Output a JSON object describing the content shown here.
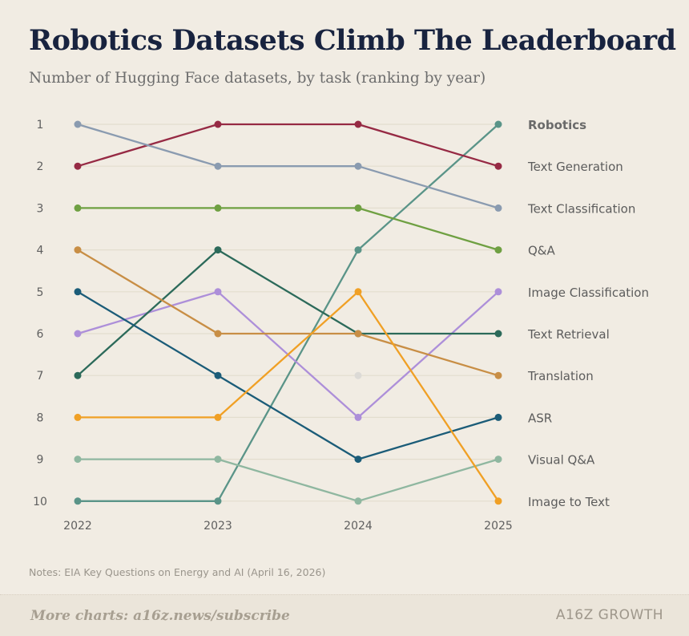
{
  "title": "Robotics Datasets Climb The Leaderboard",
  "subtitle": "Number of Hugging Face datasets, by task (ranking by year)",
  "notes": "Notes: EIA Key Questions on Energy and AI (April 16, 2026)",
  "footer": {
    "link_text": "More charts: a16z.news/subscribe",
    "brand": "A16Z GROWTH"
  },
  "chart_data": {
    "type": "line",
    "title": "Robotics Datasets Climb The Leaderboard",
    "subtitle": "Number of Hugging Face datasets, by task (ranking by year)",
    "x": [
      "2022",
      "2023",
      "2024",
      "2025"
    ],
    "y_ticks": [
      "1",
      "2",
      "3",
      "4",
      "5",
      "6",
      "7",
      "8",
      "9",
      "10"
    ],
    "ylim": [
      1,
      10
    ],
    "y_inverted": true,
    "grid": true,
    "legend": "right-end labels",
    "highlight": "Robotics",
    "series": [
      {
        "name": "Robotics",
        "values": [
          10,
          10,
          4,
          1
        ],
        "color": "#5a9488"
      },
      {
        "name": "Text Generation",
        "values": [
          2,
          1,
          1,
          2
        ],
        "color": "#962a44"
      },
      {
        "name": "Text Classification",
        "values": [
          1,
          2,
          2,
          3
        ],
        "color": "#8a9bb0"
      },
      {
        "name": "Q&A",
        "values": [
          3,
          3,
          3,
          4
        ],
        "color": "#6fa042"
      },
      {
        "name": "Image Classification",
        "values": [
          6,
          5,
          8,
          5
        ],
        "color": "#ad8fd9"
      },
      {
        "name": "Text Retrieval",
        "values": [
          7,
          4,
          6,
          6
        ],
        "color": "#2c6a5a"
      },
      {
        "name": "Translation",
        "values": [
          4,
          6,
          6,
          7
        ],
        "color": "#c88e45"
      },
      {
        "name": "ASR",
        "values": [
          5,
          7,
          9,
          8
        ],
        "color": "#1b5c78"
      },
      {
        "name": "Visual Q&A",
        "values": [
          9,
          9,
          10,
          9
        ],
        "color": "#8fb7a0"
      },
      {
        "name": "Image to Text",
        "values": [
          8,
          8,
          5,
          10
        ],
        "color": "#f0a025"
      }
    ],
    "extra_points": [
      {
        "x": "2024",
        "y": 7,
        "color": "#dcdad6"
      }
    ]
  }
}
